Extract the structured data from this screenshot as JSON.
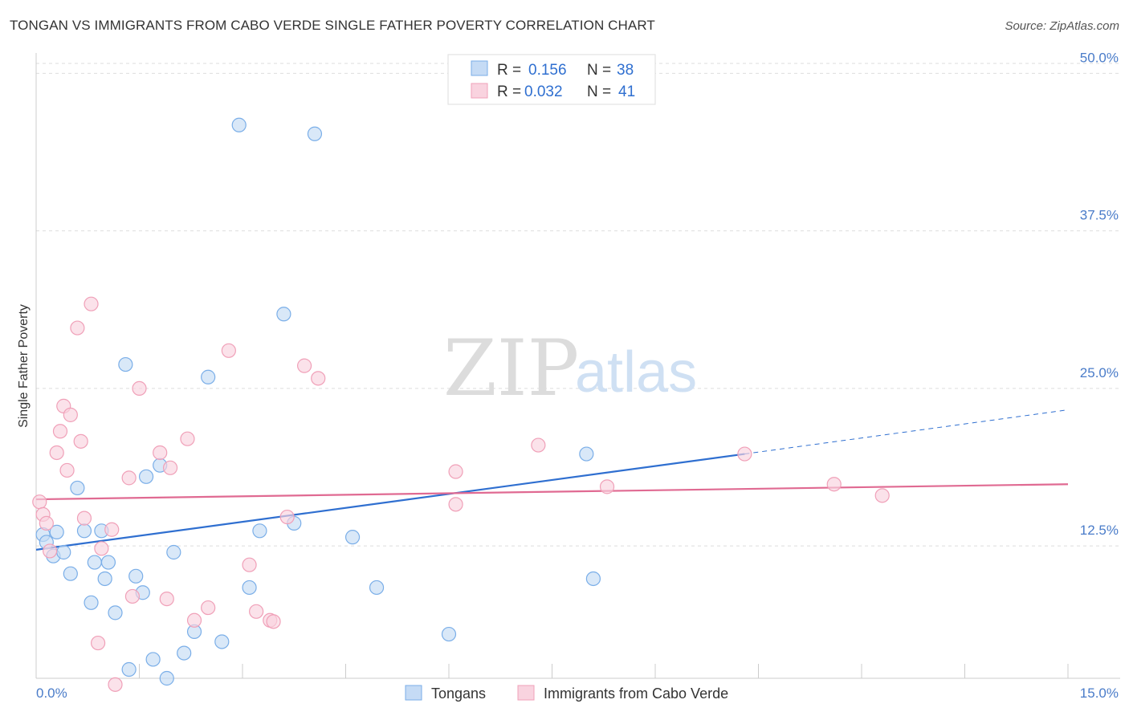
{
  "title": "TONGAN VS IMMIGRANTS FROM CABO VERDE SINGLE FATHER POVERTY CORRELATION CHART",
  "source": "Source: ZipAtlas.com",
  "watermark": {
    "zip": "ZIP",
    "atlas": "atlas"
  },
  "chart_data": {
    "type": "scatter",
    "ylabel": "Single Father Poverty",
    "xlim": [
      0,
      15
    ],
    "ylim": [
      2,
      52
    ],
    "x_ticks": [
      "0.0%",
      "15.0%"
    ],
    "y_ticks": [
      {
        "value": 12.5,
        "label": "12.5%"
      },
      {
        "value": 25.0,
        "label": "25.0%"
      },
      {
        "value": 37.5,
        "label": "37.5%"
      },
      {
        "value": 50.0,
        "label": "50.0%"
      }
    ],
    "grid": true,
    "legend_position": "top-center",
    "series": [
      {
        "name": "Tongans",
        "color": "#7aaee8",
        "fill": "#c5dbf5",
        "R": "0.156",
        "N": "38",
        "trend": {
          "x0": 0,
          "y0": 12.2,
          "x1": 10.3,
          "y1": 19.8,
          "x_end": 15,
          "y_end": 23.3
        },
        "points": [
          [
            0.1,
            13.4
          ],
          [
            0.15,
            12.8
          ],
          [
            0.25,
            11.7
          ],
          [
            0.3,
            13.6
          ],
          [
            0.4,
            12.0
          ],
          [
            0.5,
            10.3
          ],
          [
            0.6,
            17.1
          ],
          [
            0.7,
            13.7
          ],
          [
            0.8,
            8.0
          ],
          [
            0.85,
            11.2
          ],
          [
            0.95,
            13.7
          ],
          [
            1.0,
            9.9
          ],
          [
            1.05,
            11.2
          ],
          [
            1.15,
            7.2
          ],
          [
            1.3,
            26.9
          ],
          [
            1.35,
            2.7
          ],
          [
            1.45,
            10.1
          ],
          [
            1.55,
            8.8
          ],
          [
            1.6,
            18.0
          ],
          [
            1.7,
            3.5
          ],
          [
            1.8,
            18.9
          ],
          [
            1.9,
            2.0
          ],
          [
            2.0,
            12.0
          ],
          [
            2.15,
            4.0
          ],
          [
            2.3,
            5.7
          ],
          [
            2.5,
            25.9
          ],
          [
            2.7,
            4.9
          ],
          [
            2.95,
            45.9
          ],
          [
            3.1,
            9.2
          ],
          [
            3.25,
            13.7
          ],
          [
            3.6,
            30.9
          ],
          [
            3.75,
            14.3
          ],
          [
            4.05,
            45.2
          ],
          [
            4.6,
            13.2
          ],
          [
            4.95,
            9.2
          ],
          [
            6.0,
            5.5
          ],
          [
            8.0,
            19.8
          ],
          [
            8.1,
            9.9
          ]
        ]
      },
      {
        "name": "Immigrants from Cabo Verde",
        "color": "#f0a0b8",
        "fill": "#f9d3df",
        "R": "0.032",
        "N": "41",
        "trend": {
          "x0": 0,
          "y0": 16.2,
          "x1": 15,
          "y1": 17.4
        },
        "points": [
          [
            0.05,
            16.0
          ],
          [
            0.1,
            15.0
          ],
          [
            0.15,
            14.3
          ],
          [
            0.2,
            12.1
          ],
          [
            0.3,
            19.9
          ],
          [
            0.35,
            21.6
          ],
          [
            0.4,
            23.6
          ],
          [
            0.45,
            18.5
          ],
          [
            0.5,
            22.9
          ],
          [
            0.6,
            29.8
          ],
          [
            0.65,
            20.8
          ],
          [
            0.7,
            14.7
          ],
          [
            0.8,
            31.7
          ],
          [
            0.9,
            4.8
          ],
          [
            0.95,
            12.3
          ],
          [
            1.1,
            13.8
          ],
          [
            1.15,
            1.5
          ],
          [
            1.35,
            17.9
          ],
          [
            1.4,
            8.5
          ],
          [
            1.5,
            25.0
          ],
          [
            1.8,
            19.9
          ],
          [
            1.95,
            18.7
          ],
          [
            1.9,
            8.3
          ],
          [
            2.2,
            21.0
          ],
          [
            2.3,
            6.6
          ],
          [
            2.5,
            7.6
          ],
          [
            2.8,
            28.0
          ],
          [
            3.1,
            11.0
          ],
          [
            3.2,
            7.3
          ],
          [
            3.4,
            6.6
          ],
          [
            3.45,
            6.5
          ],
          [
            3.65,
            14.8
          ],
          [
            3.9,
            26.8
          ],
          [
            4.1,
            25.8
          ],
          [
            6.1,
            15.8
          ],
          [
            6.1,
            18.4
          ],
          [
            7.3,
            20.5
          ],
          [
            8.3,
            17.2
          ],
          [
            10.3,
            19.8
          ],
          [
            11.6,
            17.4
          ],
          [
            12.3,
            16.5
          ]
        ]
      }
    ]
  },
  "legend": {
    "r_label": "R =",
    "n_label": "N ="
  }
}
